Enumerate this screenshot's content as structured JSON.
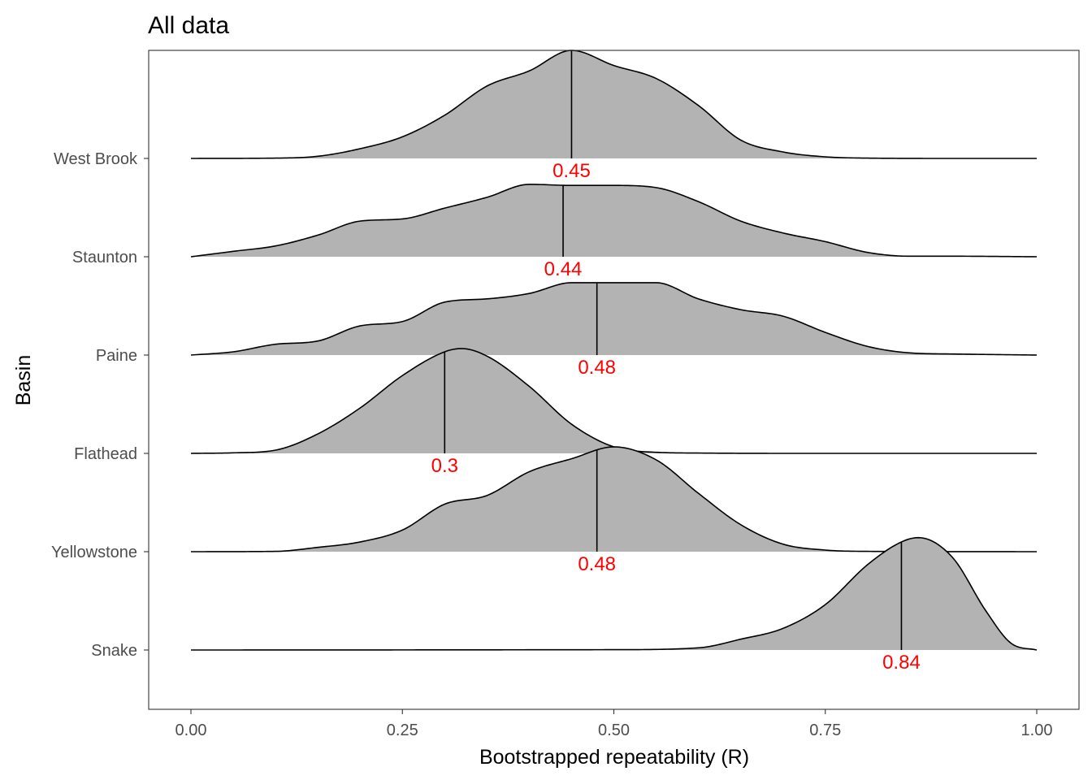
{
  "chart_data": {
    "type": "ridgeline",
    "title": "All data",
    "xlabel": "Bootstrapped repeatability (R)",
    "ylabel": "Basin",
    "xlim": [
      0,
      1
    ],
    "x_ticks": [
      0,
      0.25,
      0.5,
      0.75,
      1
    ],
    "x_tick_labels": [
      "0.00",
      "0.25",
      "0.50",
      "0.75",
      "1.00"
    ],
    "grid": false,
    "fill_color": "#b3b3b3",
    "label_color": "#ff0000",
    "series": [
      {
        "name": "West Brook",
        "median": 0.45,
        "median_label": "0.45",
        "density": [
          [
            0,
            0
          ],
          [
            0.1,
            0.003
          ],
          [
            0.15,
            0.02
          ],
          [
            0.2,
            0.09
          ],
          [
            0.25,
            0.2
          ],
          [
            0.3,
            0.4
          ],
          [
            0.35,
            0.67
          ],
          [
            0.4,
            0.81
          ],
          [
            0.45,
            1.0
          ],
          [
            0.5,
            0.86
          ],
          [
            0.55,
            0.74
          ],
          [
            0.6,
            0.49
          ],
          [
            0.65,
            0.17
          ],
          [
            0.7,
            0.06
          ],
          [
            0.75,
            0.015
          ],
          [
            0.8,
            0.003
          ],
          [
            0.9,
            0
          ],
          [
            1,
            0
          ]
        ]
      },
      {
        "name": "Staunton",
        "median": 0.44,
        "median_label": "0.44",
        "density": [
          [
            0,
            0
          ],
          [
            0.05,
            0.05
          ],
          [
            0.1,
            0.1
          ],
          [
            0.15,
            0.2
          ],
          [
            0.2,
            0.33
          ],
          [
            0.25,
            0.35
          ],
          [
            0.3,
            0.45
          ],
          [
            0.35,
            0.55
          ],
          [
            0.4,
            0.67
          ],
          [
            0.45,
            0.66
          ],
          [
            0.5,
            0.66
          ],
          [
            0.55,
            0.64
          ],
          [
            0.6,
            0.51
          ],
          [
            0.65,
            0.33
          ],
          [
            0.7,
            0.22
          ],
          [
            0.75,
            0.14
          ],
          [
            0.8,
            0.04
          ],
          [
            0.85,
            0.005
          ],
          [
            0.9,
            0.005
          ],
          [
            1,
            0
          ]
        ]
      },
      {
        "name": "Paine",
        "median": 0.48,
        "median_label": "0.48",
        "density": [
          [
            0,
            0
          ],
          [
            0.05,
            0.03
          ],
          [
            0.1,
            0.1
          ],
          [
            0.15,
            0.13
          ],
          [
            0.2,
            0.27
          ],
          [
            0.25,
            0.31
          ],
          [
            0.3,
            0.49
          ],
          [
            0.35,
            0.52
          ],
          [
            0.4,
            0.57
          ],
          [
            0.45,
            0.67
          ],
          [
            0.5,
            0.67
          ],
          [
            0.55,
            0.67
          ],
          [
            0.6,
            0.52
          ],
          [
            0.65,
            0.42
          ],
          [
            0.7,
            0.36
          ],
          [
            0.75,
            0.21
          ],
          [
            0.8,
            0.08
          ],
          [
            0.85,
            0.02
          ],
          [
            0.9,
            0.01
          ],
          [
            1,
            0
          ]
        ]
      },
      {
        "name": "Flathead",
        "median": 0.3,
        "median_label": "0.3",
        "density": [
          [
            0,
            0
          ],
          [
            0.05,
            0.005
          ],
          [
            0.1,
            0.03
          ],
          [
            0.15,
            0.18
          ],
          [
            0.2,
            0.42
          ],
          [
            0.25,
            0.72
          ],
          [
            0.3,
            0.94
          ],
          [
            0.32,
            0.97
          ],
          [
            0.35,
            0.9
          ],
          [
            0.4,
            0.62
          ],
          [
            0.45,
            0.27
          ],
          [
            0.5,
            0.06
          ],
          [
            0.55,
            0.01
          ],
          [
            0.6,
            0.003
          ],
          [
            0.7,
            0
          ],
          [
            1,
            0
          ]
        ]
      },
      {
        "name": "Yellowstone",
        "median": 0.48,
        "median_label": "0.48",
        "density": [
          [
            0,
            0
          ],
          [
            0.1,
            0.003
          ],
          [
            0.15,
            0.04
          ],
          [
            0.2,
            0.09
          ],
          [
            0.25,
            0.2
          ],
          [
            0.3,
            0.44
          ],
          [
            0.35,
            0.52
          ],
          [
            0.4,
            0.74
          ],
          [
            0.45,
            0.86
          ],
          [
            0.5,
            0.97
          ],
          [
            0.55,
            0.85
          ],
          [
            0.6,
            0.54
          ],
          [
            0.65,
            0.25
          ],
          [
            0.7,
            0.07
          ],
          [
            0.75,
            0.015
          ],
          [
            0.8,
            0.003
          ],
          [
            1,
            0
          ]
        ]
      },
      {
        "name": "Snake",
        "median": 0.84,
        "median_label": "0.84",
        "density": [
          [
            0,
            0
          ],
          [
            0.5,
            0.003
          ],
          [
            0.6,
            0.02
          ],
          [
            0.65,
            0.1
          ],
          [
            0.7,
            0.2
          ],
          [
            0.75,
            0.42
          ],
          [
            0.8,
            0.79
          ],
          [
            0.84,
            1.0
          ],
          [
            0.86,
            1.04
          ],
          [
            0.9,
            0.86
          ],
          [
            0.94,
            0.36
          ],
          [
            0.97,
            0.06
          ],
          [
            1,
            0
          ]
        ]
      }
    ]
  }
}
